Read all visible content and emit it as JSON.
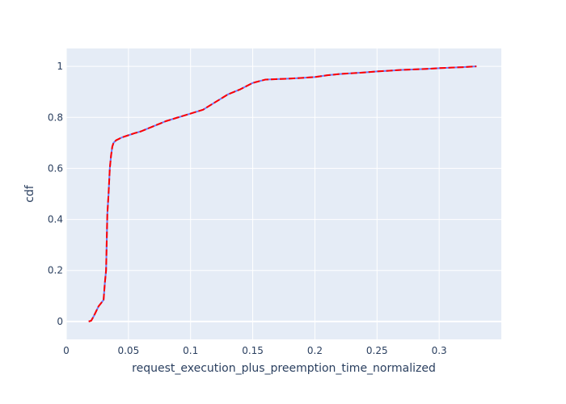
{
  "chart_data": {
    "type": "line",
    "title": "",
    "xlabel": "request_execution_plus_preemption_time_normalized",
    "ylabel": "cdf",
    "xlim": [
      0,
      0.35
    ],
    "ylim": [
      -0.07,
      1.07
    ],
    "x_ticks": [
      0,
      0.05,
      0.1,
      0.15,
      0.2,
      0.25,
      0.3
    ],
    "x_tick_labels": [
      "0",
      "0.05",
      "0.1",
      "0.15",
      "0.2",
      "0.25",
      "0.3"
    ],
    "y_ticks": [
      0,
      0.2,
      0.4,
      0.6,
      0.8,
      1
    ],
    "y_tick_labels": [
      "0",
      "0.2",
      "0.4",
      "0.6",
      "0.8",
      "1"
    ],
    "grid": true,
    "legend": "none",
    "plot_bgcolor": "#e5ecf6",
    "series": [
      {
        "color": "#6b7cff",
        "x": [
          0.018,
          0.02,
          0.022,
          0.024,
          0.026,
          0.028,
          0.03,
          0.031,
          0.032,
          0.033,
          0.034,
          0.035,
          0.036,
          0.037,
          0.038,
          0.04,
          0.045,
          0.05,
          0.055,
          0.06,
          0.065,
          0.07,
          0.075,
          0.08,
          0.09,
          0.1,
          0.11,
          0.12,
          0.13,
          0.14,
          0.15,
          0.16,
          0.17,
          0.18,
          0.19,
          0.2,
          0.21,
          0.22,
          0.23,
          0.24,
          0.25,
          0.26,
          0.27,
          0.28,
          0.29,
          0.3,
          0.31,
          0.32,
          0.33
        ],
        "y": [
          0,
          0.003,
          0.02,
          0.04,
          0.06,
          0.072,
          0.085,
          0.15,
          0.2,
          0.42,
          0.5,
          0.6,
          0.65,
          0.685,
          0.7,
          0.71,
          0.722,
          0.73,
          0.738,
          0.745,
          0.755,
          0.765,
          0.775,
          0.785,
          0.8,
          0.815,
          0.83,
          0.86,
          0.89,
          0.91,
          0.935,
          0.948,
          0.95,
          0.952,
          0.955,
          0.958,
          0.965,
          0.97,
          0.973,
          0.976,
          0.98,
          0.983,
          0.986,
          0.988,
          0.99,
          0.993,
          0.995,
          0.997,
          1.0
        ]
      },
      {
        "color": "#ff0000",
        "x": [
          0.018,
          0.02,
          0.022,
          0.024,
          0.026,
          0.028,
          0.03,
          0.031,
          0.032,
          0.033,
          0.034,
          0.035,
          0.036,
          0.037,
          0.038,
          0.04,
          0.045,
          0.05,
          0.055,
          0.06,
          0.065,
          0.07,
          0.075,
          0.08,
          0.09,
          0.1,
          0.11,
          0.12,
          0.13,
          0.14,
          0.15,
          0.16,
          0.17,
          0.18,
          0.19,
          0.2,
          0.21,
          0.22,
          0.23,
          0.24,
          0.25,
          0.26,
          0.27,
          0.28,
          0.29,
          0.3,
          0.31,
          0.32,
          0.33
        ],
        "y": [
          0,
          0.003,
          0.02,
          0.04,
          0.06,
          0.072,
          0.085,
          0.15,
          0.2,
          0.42,
          0.5,
          0.6,
          0.65,
          0.685,
          0.7,
          0.71,
          0.722,
          0.73,
          0.738,
          0.745,
          0.755,
          0.765,
          0.775,
          0.785,
          0.8,
          0.815,
          0.83,
          0.86,
          0.89,
          0.91,
          0.935,
          0.948,
          0.95,
          0.952,
          0.955,
          0.958,
          0.965,
          0.97,
          0.973,
          0.976,
          0.98,
          0.983,
          0.986,
          0.988,
          0.99,
          0.993,
          0.995,
          0.997,
          1.0
        ],
        "dashed": true
      }
    ]
  }
}
